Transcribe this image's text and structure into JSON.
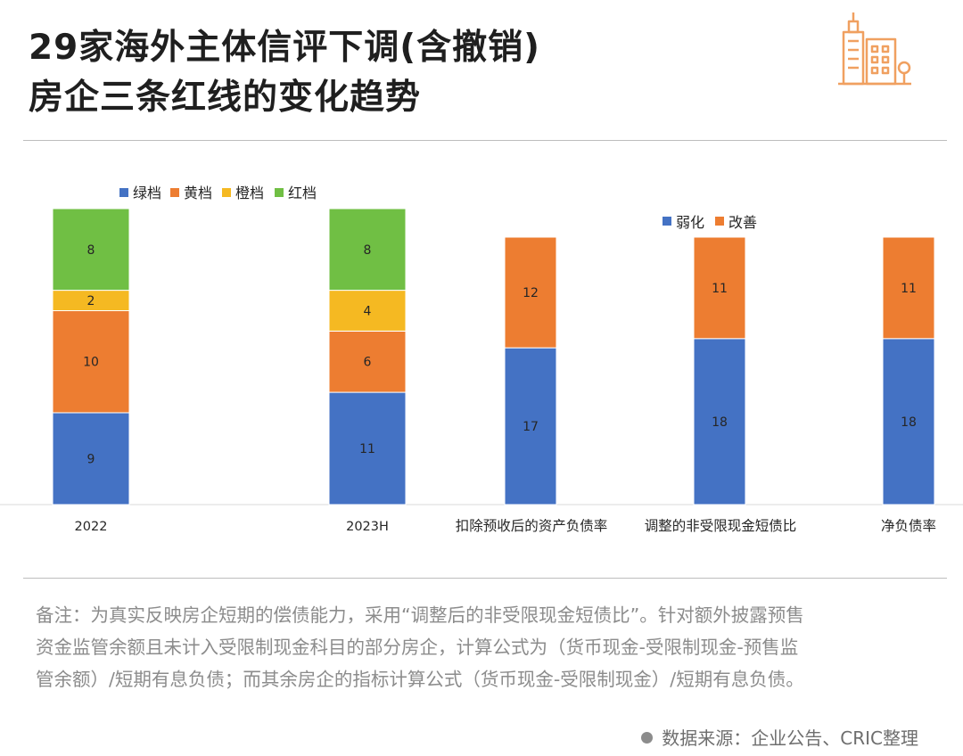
{
  "title": {
    "line1": "29家海外主体信评下调(含撤销)",
    "line2": "房企三条红线的变化趋势"
  },
  "logo_icon": "city-buildings-icon",
  "colors": {
    "green_tier": "#4472C4",
    "yellow_tier": "#ED7D31",
    "orange_tier": "#F5B922",
    "red_tier": "#70BF44",
    "weaken": "#4472C4",
    "improve": "#ED7D31",
    "accent": "#F0A060"
  },
  "chart_data": [
    {
      "type": "bar",
      "stacked": true,
      "categories": [
        "2022",
        "2023H"
      ],
      "series": [
        {
          "name": "绿档",
          "values": [
            9,
            11
          ]
        },
        {
          "name": "黄档",
          "values": [
            10,
            6
          ]
        },
        {
          "name": "橙档",
          "values": [
            2,
            4
          ]
        },
        {
          "name": "红档",
          "values": [
            8,
            8
          ]
        }
      ],
      "legend": "top-left",
      "grid": false,
      "ylim": [
        0,
        29
      ]
    },
    {
      "type": "bar",
      "stacked": true,
      "categories": [
        "扣除预收后的资产负债率",
        "调整的非受限现金短债比",
        "净负债率"
      ],
      "series": [
        {
          "name": "弱化",
          "values": [
            17,
            18,
            18
          ]
        },
        {
          "name": "改善",
          "values": [
            12,
            11,
            11
          ]
        }
      ],
      "legend": "top-right",
      "grid": false,
      "ylim": [
        0,
        29
      ]
    }
  ],
  "note": {
    "line1": "备注：为真实反映房企短期的偿债能力，采用“调整后的非受限现金短债比”。针对额外披露预售",
    "line2": "资金监管余额且未计入受限制现金科目的部分房企，计算公式为（货币现金-受限制现金-预售监",
    "line3": "管余额）/短期有息负债；而其余房企的指标计算公式（货币现金-受限制现金）/短期有息负债。"
  },
  "source": "数据来源：企业公告、CRIC整理"
}
